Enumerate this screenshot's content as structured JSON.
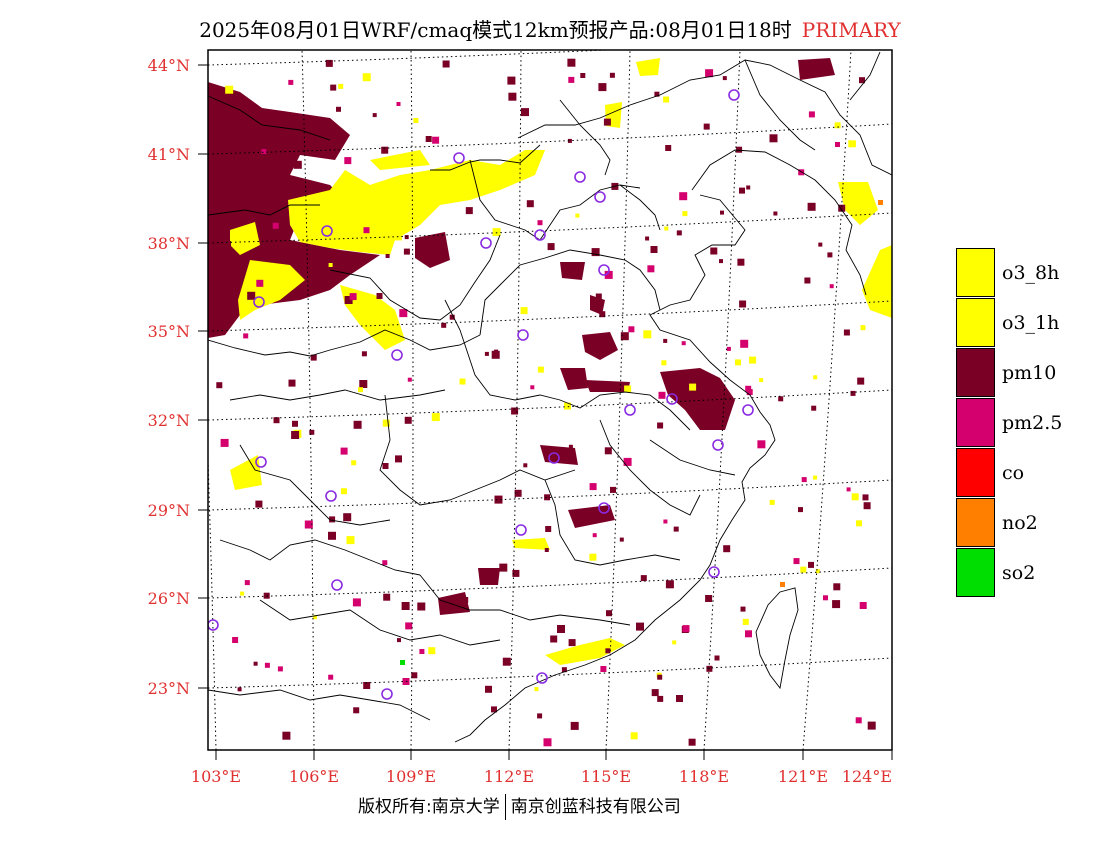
{
  "header": {
    "title": "2025年08月01日WRF/cmaq模式12km预报产品:08月01日18时",
    "tag": "PRIMARY"
  },
  "colors": {
    "label_red": "#e03030",
    "o3_8h": "#ffff00",
    "o3_1h": "#ffff00",
    "pm10": "#7a0026",
    "pm25": "#d4006e",
    "co": "#ff0000",
    "no2": "#ff7f00",
    "so2": "#00dd00",
    "station": "#8a2be2"
  },
  "map": {
    "lat_labels": [
      "44°N",
      "41°N",
      "38°N",
      "35°N",
      "32°N",
      "29°N",
      "26°N",
      "23°N"
    ],
    "lon_labels": [
      "103°E",
      "106°E",
      "109°E",
      "112°E",
      "115°E",
      "118°E",
      "121°E",
      "124°E"
    ],
    "lon_range": [
      103,
      124
    ],
    "lat_range": [
      21,
      44.5
    ]
  },
  "legend": {
    "items": [
      {
        "label": "o3_8h",
        "color": "#ffff00"
      },
      {
        "label": "o3_1h",
        "color": "#ffff00"
      },
      {
        "label": "pm10",
        "color": "#7a0026"
      },
      {
        "label": "pm2.5",
        "color": "#d4006e"
      },
      {
        "label": "co",
        "color": "#ff0000"
      },
      {
        "label": "no2",
        "color": "#ff7f00"
      },
      {
        "label": "so2",
        "color": "#00dd00"
      }
    ]
  },
  "footer": {
    "left": "版权所有:南京大学",
    "right": "南京创蓝科技有限公司"
  }
}
